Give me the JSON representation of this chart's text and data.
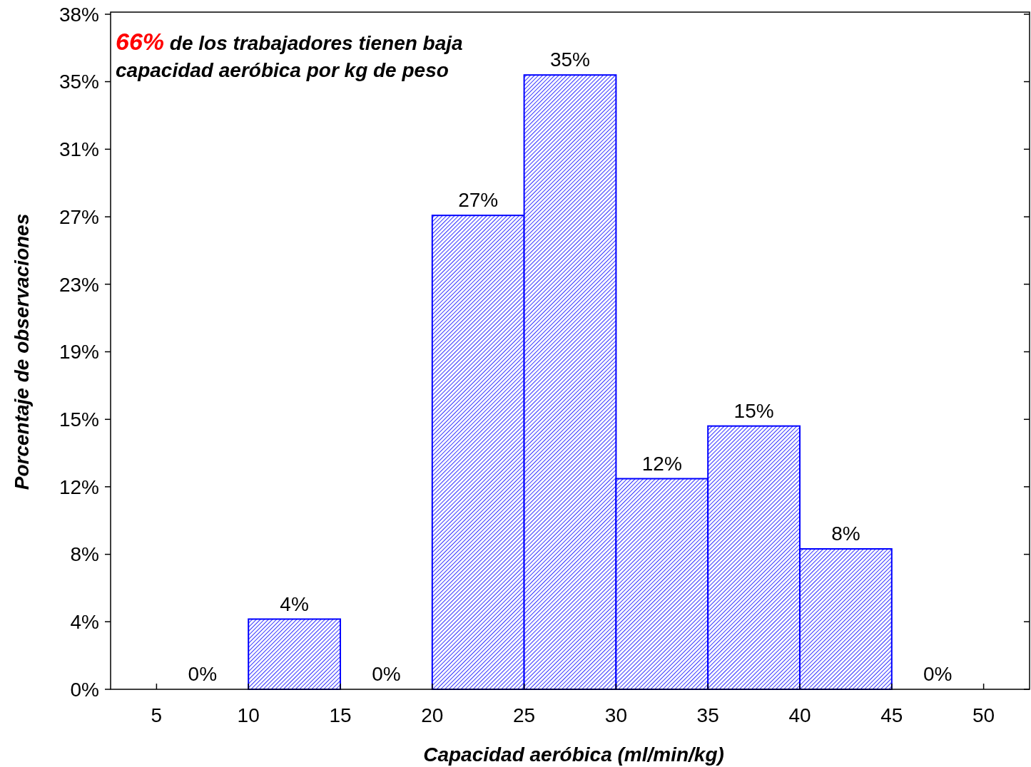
{
  "chart_data": {
    "type": "histogram",
    "xlabel": "Capacidad aeróbica (ml/min/kg)",
    "ylabel": "Porcentaje de observaciones",
    "annotations": [
      "66% de los trabajadores tienen baja capacidad aeróbica por kg de peso"
    ],
    "bins": [
      5,
      10,
      15,
      20,
      25,
      30,
      35,
      40,
      45,
      50
    ],
    "values": [
      0,
      4,
      0,
      27,
      35,
      12,
      15,
      8,
      0
    ],
    "value_labels": [
      "0%",
      "4%",
      "0%",
      "27%",
      "35%",
      "12%",
      "15%",
      "8%",
      "0%"
    ],
    "color": "#0000ff",
    "xlim": [
      2.5,
      52.5
    ],
    "xticks": [
      5,
      10,
      15,
      20,
      25,
      30,
      35,
      40,
      45,
      50
    ],
    "ylim": [
      0,
      38.46
    ],
    "yticks": [
      {
        "value": 0,
        "label": "0%"
      },
      {
        "value": 3.85,
        "label": "4%"
      },
      {
        "value": 7.69,
        "label": "8%"
      },
      {
        "value": 11.54,
        "label": "12%"
      },
      {
        "value": 15.38,
        "label": "15%"
      },
      {
        "value": 19.23,
        "label": "19%"
      },
      {
        "value": 23.08,
        "label": "23%"
      },
      {
        "value": 26.92,
        "label": "27%"
      },
      {
        "value": 30.77,
        "label": "31%"
      },
      {
        "value": 34.62,
        "label": "35%"
      },
      {
        "value": 38.46,
        "label": "38%"
      }
    ],
    "grid": false
  }
}
